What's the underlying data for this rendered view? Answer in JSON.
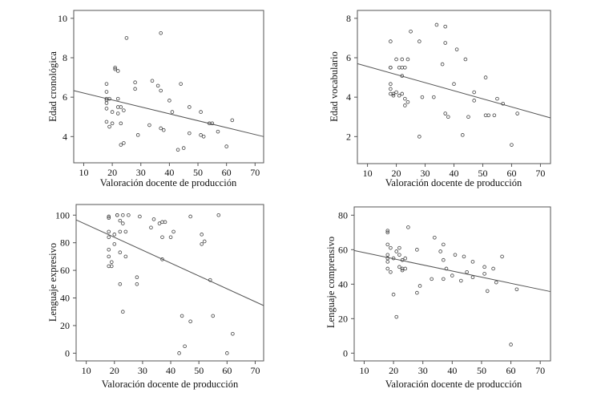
{
  "chart_data": [
    {
      "type": "scatter",
      "xlabel": "Valoración docente de producción",
      "ylabel": "Edad cronológica",
      "xlim": [
        6.5,
        73
      ],
      "ylim": [
        2.67,
        10.4
      ],
      "xticks": [
        10,
        20,
        30,
        40,
        50,
        60,
        70
      ],
      "yticks": [
        4,
        6,
        8,
        10
      ],
      "grid": false,
      "regression_line": [
        [
          6.5,
          6.33
        ],
        [
          73,
          4.0
        ]
      ],
      "points": [
        [
          18,
          6.67
        ],
        [
          18,
          6.27
        ],
        [
          18,
          5.92
        ],
        [
          19,
          5.92
        ],
        [
          18,
          5.85
        ],
        [
          18,
          5.7
        ],
        [
          18,
          5.42
        ],
        [
          18,
          4.75
        ],
        [
          19,
          4.5
        ],
        [
          20,
          4.67
        ],
        [
          20,
          5.25
        ],
        [
          21,
          7.5
        ],
        [
          21,
          7.42
        ],
        [
          22,
          7.33
        ],
        [
          22,
          5.92
        ],
        [
          22,
          5.5
        ],
        [
          22,
          5.17
        ],
        [
          23,
          5.5
        ],
        [
          23,
          4.67
        ],
        [
          24,
          5.33
        ],
        [
          23,
          3.58
        ],
        [
          24,
          3.67
        ],
        [
          25,
          9.0
        ],
        [
          28,
          6.75
        ],
        [
          28,
          6.42
        ],
        [
          29,
          4.08
        ],
        [
          33,
          4.58
        ],
        [
          34,
          6.83
        ],
        [
          36,
          6.58
        ],
        [
          37,
          6.33
        ],
        [
          37,
          9.25
        ],
        [
          37,
          4.42
        ],
        [
          38,
          4.33
        ],
        [
          40,
          5.83
        ],
        [
          41,
          5.25
        ],
        [
          43,
          3.33
        ],
        [
          44,
          6.67
        ],
        [
          45,
          3.42
        ],
        [
          47,
          5.5
        ],
        [
          47,
          4.17
        ],
        [
          51,
          5.25
        ],
        [
          51,
          4.08
        ],
        [
          52,
          4.0
        ],
        [
          54,
          4.67
        ],
        [
          55,
          4.67
        ],
        [
          57,
          4.25
        ],
        [
          60,
          3.5
        ],
        [
          62,
          4.83
        ]
      ]
    },
    {
      "type": "scatter",
      "xlabel": "Valoración docente de producción",
      "ylabel": "Edad vocabulario",
      "xlim": [
        6.5,
        73.5
      ],
      "ylim": [
        0.63,
        8.4
      ],
      "xticks": [
        10,
        20,
        30,
        40,
        50,
        60,
        70
      ],
      "yticks": [
        2,
        4,
        6,
        8
      ],
      "grid": false,
      "regression_line": [
        [
          6.5,
          5.7
        ],
        [
          73.5,
          2.95
        ]
      ],
      "points": [
        [
          18,
          6.83
        ],
        [
          18,
          5.5
        ],
        [
          18,
          5.5
        ],
        [
          18,
          4.67
        ],
        [
          18,
          4.42
        ],
        [
          18,
          4.17
        ],
        [
          19,
          4.17
        ],
        [
          19,
          4.08
        ],
        [
          20,
          4.25
        ],
        [
          20,
          5.92
        ],
        [
          21,
          5.5
        ],
        [
          21,
          4.08
        ],
        [
          22,
          5.92
        ],
        [
          22,
          5.5
        ],
        [
          22,
          5.08
        ],
        [
          22,
          4.17
        ],
        [
          23,
          5.5
        ],
        [
          23,
          3.92
        ],
        [
          23,
          3.58
        ],
        [
          24,
          5.92
        ],
        [
          24,
          3.75
        ],
        [
          25,
          7.33
        ],
        [
          28,
          6.83
        ],
        [
          28,
          2.0
        ],
        [
          29,
          4.0
        ],
        [
          33,
          4.0
        ],
        [
          34,
          7.67
        ],
        [
          36,
          5.67
        ],
        [
          37,
          7.58
        ],
        [
          37,
          6.75
        ],
        [
          37,
          3.17
        ],
        [
          38,
          3.0
        ],
        [
          40,
          4.67
        ],
        [
          41,
          6.42
        ],
        [
          43,
          2.08
        ],
        [
          44,
          5.92
        ],
        [
          45,
          3.0
        ],
        [
          47,
          4.25
        ],
        [
          47,
          3.83
        ],
        [
          51,
          5.0
        ],
        [
          51,
          3.08
        ],
        [
          52,
          3.08
        ],
        [
          54,
          3.08
        ],
        [
          55,
          3.92
        ],
        [
          57,
          3.67
        ],
        [
          60,
          1.58
        ],
        [
          62,
          3.17
        ]
      ]
    },
    {
      "type": "scatter",
      "xlabel": "Valoración docente de producción",
      "ylabel": "Lenguaje expresivo",
      "xlim": [
        6.4,
        73
      ],
      "ylim": [
        -5.6,
        107.7
      ],
      "xticks": [
        10,
        20,
        30,
        40,
        50,
        60,
        70
      ],
      "yticks": [
        0,
        20,
        40,
        60,
        80,
        100
      ],
      "grid": false,
      "regression_line": [
        [
          6.5,
          96.5
        ],
        [
          73,
          34.5
        ]
      ],
      "points": [
        [
          18,
          99
        ],
        [
          18,
          98
        ],
        [
          18,
          88
        ],
        [
          18,
          84
        ],
        [
          18,
          75
        ],
        [
          18,
          70
        ],
        [
          18,
          63
        ],
        [
          19,
          66
        ],
        [
          19,
          63
        ],
        [
          20,
          86
        ],
        [
          20,
          79
        ],
        [
          21,
          100
        ],
        [
          21,
          100
        ],
        [
          22,
          96
        ],
        [
          22,
          88
        ],
        [
          22,
          73
        ],
        [
          22,
          50
        ],
        [
          23,
          100
        ],
        [
          23,
          94
        ],
        [
          23,
          30
        ],
        [
          24,
          88
        ],
        [
          24,
          70
        ],
        [
          25,
          100
        ],
        [
          28,
          55
        ],
        [
          28,
          50
        ],
        [
          29,
          99
        ],
        [
          33,
          91
        ],
        [
          34,
          97
        ],
        [
          36,
          94
        ],
        [
          37,
          95
        ],
        [
          37,
          84
        ],
        [
          37,
          68
        ],
        [
          38,
          95
        ],
        [
          40,
          84
        ],
        [
          41,
          88
        ],
        [
          43,
          0
        ],
        [
          44,
          27
        ],
        [
          45,
          5
        ],
        [
          47,
          99
        ],
        [
          47,
          23
        ],
        [
          51,
          86
        ],
        [
          51,
          79
        ],
        [
          52,
          81
        ],
        [
          54,
          53
        ],
        [
          55,
          27
        ],
        [
          57,
          100
        ],
        [
          60,
          0
        ],
        [
          62,
          14
        ]
      ]
    },
    {
      "type": "scatter",
      "xlabel": "Valoración docente de producción",
      "ylabel": "Lenguaje comprensivo",
      "xlim": [
        6.6,
        73.5
      ],
      "ylim": [
        -4.5,
        84.8
      ],
      "xticks": [
        10,
        20,
        30,
        40,
        50,
        60,
        70
      ],
      "yticks": [
        0,
        20,
        40,
        60,
        80
      ],
      "grid": false,
      "regression_line": [
        [
          6.6,
          59.5
        ],
        [
          73.5,
          35.7
        ]
      ],
      "points": [
        [
          18,
          71
        ],
        [
          18,
          70
        ],
        [
          18,
          63
        ],
        [
          18,
          57
        ],
        [
          18,
          55
        ],
        [
          18,
          53
        ],
        [
          18,
          49
        ],
        [
          19,
          61
        ],
        [
          19,
          47
        ],
        [
          20,
          55
        ],
        [
          20,
          34
        ],
        [
          21,
          59
        ],
        [
          21,
          21
        ],
        [
          22,
          61
        ],
        [
          22,
          57
        ],
        [
          22,
          50
        ],
        [
          23,
          54
        ],
        [
          23,
          49
        ],
        [
          23,
          48
        ],
        [
          24,
          55
        ],
        [
          24,
          49
        ],
        [
          25,
          73
        ],
        [
          28,
          60
        ],
        [
          28,
          35
        ],
        [
          29,
          39
        ],
        [
          33,
          43
        ],
        [
          34,
          67
        ],
        [
          36,
          59
        ],
        [
          37,
          63
        ],
        [
          37,
          54
        ],
        [
          37,
          43
        ],
        [
          38,
          49
        ],
        [
          40,
          45
        ],
        [
          41,
          57
        ],
        [
          43,
          42
        ],
        [
          44,
          56
        ],
        [
          45,
          47
        ],
        [
          47,
          53
        ],
        [
          47,
          44
        ],
        [
          51,
          50
        ],
        [
          51,
          46
        ],
        [
          52,
          36
        ],
        [
          54,
          49
        ],
        [
          55,
          41
        ],
        [
          57,
          56
        ],
        [
          60,
          5
        ],
        [
          62,
          37
        ]
      ]
    }
  ]
}
